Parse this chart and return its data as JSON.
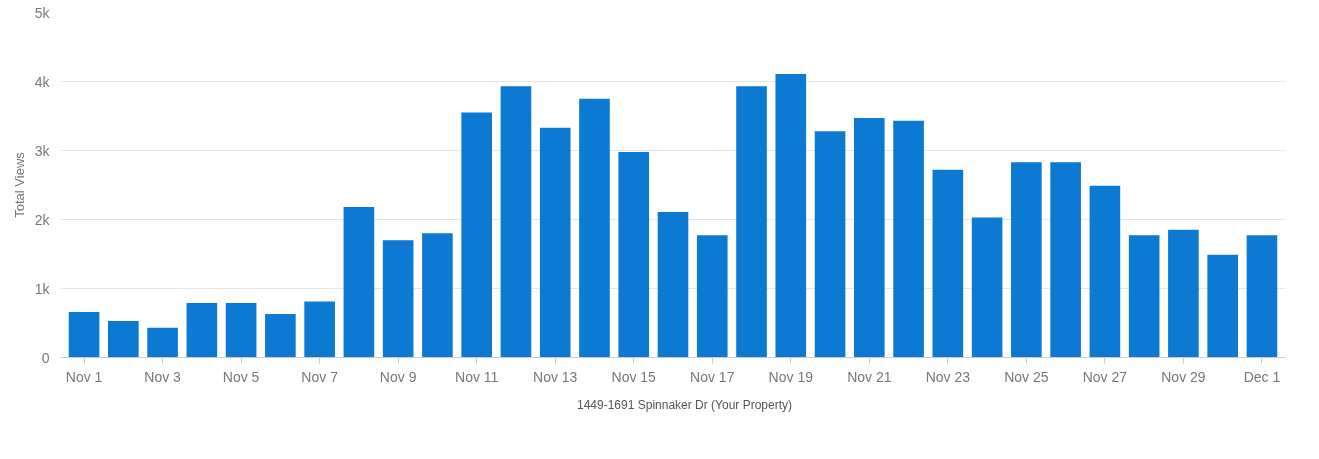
{
  "chart_data": {
    "type": "bar",
    "ylabel": "Total Views",
    "categories": [
      "Nov 1",
      null,
      "Nov 3",
      null,
      "Nov 5",
      null,
      "Nov 7",
      null,
      "Nov 9",
      null,
      "Nov 11",
      null,
      "Nov 13",
      null,
      "Nov 15",
      null,
      "Nov 17",
      null,
      "Nov 19",
      null,
      "Nov 21",
      null,
      "Nov 23",
      null,
      "Nov 25",
      null,
      "Nov 27",
      null,
      "Nov 29",
      null,
      "Dec 1"
    ],
    "series": [
      {
        "name": "1449-1691 Spinnaker Dr (Your Property)",
        "color": "#0c79d2",
        "values": [
          660,
          530,
          430,
          790,
          790,
          630,
          810,
          2180,
          1700,
          1800,
          3550,
          3930,
          3330,
          3750,
          2980,
          2110,
          1770,
          3930,
          4110,
          3280,
          3470,
          3430,
          2720,
          2030,
          2830,
          2830,
          2490,
          1770,
          1850,
          1490,
          1770
        ]
      }
    ],
    "ylim": [
      0,
      5000
    ],
    "yticks": [
      0,
      {
        "value": 1000,
        "label": "1k"
      },
      {
        "value": 2000,
        "label": "2k"
      },
      {
        "value": 3000,
        "label": "3k"
      },
      {
        "value": 4000,
        "label": "4k"
      },
      {
        "value": 5000,
        "label": "5k"
      }
    ],
    "grid": "y",
    "legend": "bottom"
  }
}
